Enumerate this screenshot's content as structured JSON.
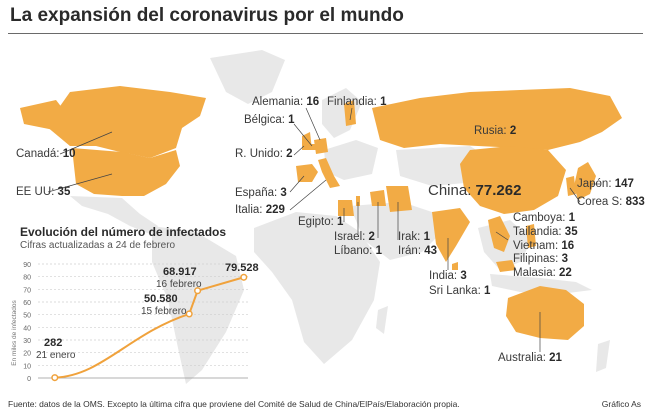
{
  "title": "La expansión del coronavirus por el mundo",
  "colors": {
    "land": "#e8e8e8",
    "affected": "#f2ab45",
    "line": "#f0a23c",
    "text": "#2a2a2a"
  },
  "countries": [
    {
      "id": "alemania",
      "name": "Alemania:",
      "value": "16"
    },
    {
      "id": "finlandia",
      "name": "Finlandia:",
      "value": "1"
    },
    {
      "id": "belgica",
      "name": "Bélgica:",
      "value": "1"
    },
    {
      "id": "rusia",
      "name": "Rusia:",
      "value": "2"
    },
    {
      "id": "canada",
      "name": "Canadá:",
      "value": "10"
    },
    {
      "id": "reino-unido",
      "name": "R. Unido:",
      "value": "2"
    },
    {
      "id": "eeuu",
      "name": "EE UU:",
      "value": "35"
    },
    {
      "id": "china",
      "name": "China:",
      "value": "77.262"
    },
    {
      "id": "japon",
      "name": "Japón:",
      "value": "147"
    },
    {
      "id": "espana",
      "name": "España:",
      "value": "3"
    },
    {
      "id": "corea-sur",
      "name": "Corea S:",
      "value": "833"
    },
    {
      "id": "italia",
      "name": "Italia:",
      "value": "229"
    },
    {
      "id": "egipto",
      "name": "Egipto:",
      "value": "1"
    },
    {
      "id": "camboya",
      "name": "Camboya:",
      "value": "1"
    },
    {
      "id": "tailandia",
      "name": "Tailandia:",
      "value": "35"
    },
    {
      "id": "israel",
      "name": "Israel:",
      "value": "2"
    },
    {
      "id": "irak",
      "name": "Irak:",
      "value": "1"
    },
    {
      "id": "vietnam",
      "name": "Vietnam:",
      "value": "16"
    },
    {
      "id": "libano",
      "name": "Líbano:",
      "value": "1"
    },
    {
      "id": "iran",
      "name": "Irán:",
      "value": "43"
    },
    {
      "id": "filipinas",
      "name": "Filipinas:",
      "value": "3"
    },
    {
      "id": "malasia",
      "name": "Malasia:",
      "value": "22"
    },
    {
      "id": "india",
      "name": "India:",
      "value": "3"
    },
    {
      "id": "sri-lanka",
      "name": "Sri Lanka:",
      "value": "1"
    },
    {
      "id": "australia",
      "name": "Australia:",
      "value": "21"
    }
  ],
  "chart_data": {
    "type": "line",
    "title": "Evolución del número de infectados",
    "subtitle": "Cifras actualizadas a 24 de febrero",
    "ylabel": "En miles de infectados",
    "ylim": [
      0,
      90
    ],
    "yticks": [
      "0",
      "10",
      "20",
      "30",
      "40",
      "50",
      "60",
      "70",
      "80",
      "90"
    ],
    "series": [
      {
        "values": [
          0.282,
          50.58,
          68.917,
          79.528
        ]
      }
    ],
    "annotations": [
      {
        "value": "282",
        "date": "21 enero"
      },
      {
        "value": "50.580",
        "date": "15 febrero"
      },
      {
        "value": "68.917",
        "date": "16 febrero"
      },
      {
        "value": "79.528",
        "date": ""
      }
    ]
  },
  "source": "Fuente: datos de la OMS. Excepto la última cifra que proviene del Comité de Salud de China/ElPaís/Elaboración propia.",
  "credit": "Gráfico As"
}
